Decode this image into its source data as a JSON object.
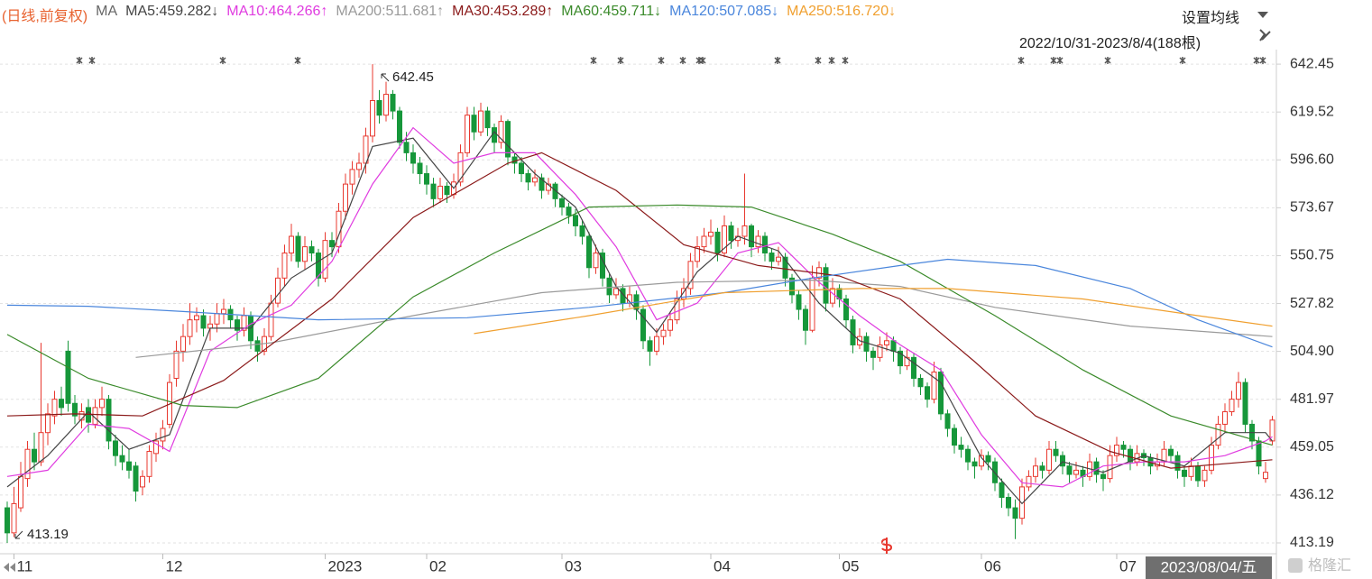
{
  "chart_data": {
    "type": "candlestick",
    "period_label": "(日线,前复权)",
    "legend_title": "MA",
    "settings_button": "设置均线",
    "range_label": "2022/10/31-2023/8/4(188根)",
    "cursor_date": "2023/08/04/五",
    "watermark": "格隆汇",
    "ylim": [
      408,
      649.4
    ],
    "yticks": [
      642.45,
      619.52,
      {
        "value": 596.6,
        "label": "596.60"
      },
      573.67,
      550.75,
      527.82,
      {
        "value": 504.9,
        "label": "504.90"
      },
      481.97,
      459.05,
      436.12,
      413.19
    ],
    "grid": true,
    "xticks": [
      {
        "value": 1,
        "label": "11"
      },
      {
        "value": 23,
        "label": "12"
      },
      {
        "value": 47,
        "label": "2023"
      },
      {
        "value": 62,
        "label": "02"
      },
      {
        "value": 82,
        "label": "03"
      },
      {
        "value": 104,
        "label": "04"
      },
      {
        "value": 123,
        "label": "05"
      },
      {
        "value": 144,
        "label": "06"
      },
      {
        "value": 164,
        "label": "07"
      }
    ],
    "up_color": "#e8382f",
    "down_color": "#16973a",
    "candles": [
      [
        430,
        433,
        413.19,
        418
      ],
      [
        418,
        440,
        416,
        432
      ],
      [
        430,
        452,
        428,
        445
      ],
      [
        444,
        462,
        440,
        458
      ],
      [
        458,
        466,
        448,
        452
      ],
      [
        452,
        509,
        450,
        466
      ],
      [
        466,
        480,
        460,
        475
      ],
      [
        474,
        486,
        470,
        482
      ],
      [
        482,
        488,
        474,
        478
      ],
      [
        505,
        510,
        476,
        480
      ],
      [
        480,
        484,
        470,
        474
      ],
      [
        472,
        480,
        468,
        476
      ],
      [
        478,
        482,
        466,
        471
      ],
      [
        470,
        482,
        468,
        478
      ],
      [
        478,
        488,
        474,
        482
      ],
      [
        482,
        484,
        458,
        462
      ],
      [
        462,
        465,
        450,
        455
      ],
      [
        455,
        460,
        448,
        452
      ],
      [
        452,
        458,
        444,
        448
      ],
      [
        450,
        452,
        433,
        438
      ],
      [
        440,
        448,
        436,
        445
      ],
      [
        445,
        460,
        442,
        457
      ],
      [
        456,
        466,
        452,
        462
      ],
      [
        462,
        472,
        458,
        468
      ],
      [
        470,
        494,
        468,
        490
      ],
      [
        492,
        510,
        488,
        505
      ],
      [
        505,
        518,
        500,
        512
      ],
      [
        512,
        528,
        508,
        520
      ],
      [
        520,
        526,
        514,
        522
      ],
      [
        522,
        525,
        512,
        516
      ],
      [
        516,
        522,
        510,
        518
      ],
      [
        518,
        528,
        514,
        523
      ],
      [
        523,
        530,
        518,
        525
      ],
      [
        525,
        527,
        516,
        520
      ],
      [
        520,
        522,
        510,
        515
      ],
      [
        515,
        526,
        512,
        522
      ],
      [
        522,
        524,
        506,
        510
      ],
      [
        510,
        512,
        500,
        505
      ],
      [
        505,
        516,
        503,
        512
      ],
      [
        512,
        532,
        510,
        528
      ],
      [
        528,
        545,
        526,
        540
      ],
      [
        540,
        556,
        536,
        552
      ],
      [
        552,
        566,
        548,
        560
      ],
      [
        560,
        562,
        545,
        548
      ],
      [
        548,
        560,
        544,
        555
      ],
      [
        555,
        558,
        548,
        552
      ],
      [
        552,
        554,
        536,
        540
      ],
      [
        540,
        562,
        538,
        558
      ],
      [
        558,
        562,
        550,
        555
      ],
      [
        555,
        576,
        552,
        572
      ],
      [
        572,
        590,
        568,
        585
      ],
      [
        585,
        596,
        580,
        592
      ],
      [
        592,
        600,
        588,
        595
      ],
      [
        595,
        612,
        590,
        608
      ],
      [
        608,
        642.45,
        605,
        625
      ],
      [
        625,
        630,
        614,
        618
      ],
      [
        618,
        634,
        615,
        628
      ],
      [
        628,
        630,
        616,
        620
      ],
      [
        620,
        622,
        602,
        605
      ],
      [
        605,
        610,
        596,
        600
      ],
      [
        600,
        604,
        590,
        595
      ],
      [
        595,
        598,
        585,
        590
      ],
      [
        590,
        594,
        580,
        585
      ],
      [
        585,
        588,
        574,
        578
      ],
      [
        578,
        588,
        576,
        584
      ],
      [
        584,
        586,
        576,
        580
      ],
      [
        580,
        590,
        578,
        586
      ],
      [
        586,
        604,
        584,
        600
      ],
      [
        600,
        622,
        598,
        618
      ],
      [
        618,
        622,
        606,
        610
      ],
      [
        610,
        624,
        608,
        620
      ],
      [
        620,
        622,
        608,
        612
      ],
      [
        612,
        614,
        600,
        605
      ],
      [
        605,
        618,
        602,
        615
      ],
      [
        615,
        616,
        594,
        598
      ],
      [
        598,
        600,
        590,
        595
      ],
      [
        595,
        598,
        586,
        590
      ],
      [
        590,
        592,
        582,
        586
      ],
      [
        586,
        592,
        584,
        588
      ],
      [
        588,
        590,
        578,
        582
      ],
      [
        582,
        588,
        580,
        585
      ],
      [
        585,
        586,
        574,
        578
      ],
      [
        578,
        580,
        570,
        574
      ],
      [
        574,
        576,
        566,
        570
      ],
      [
        570,
        573,
        560,
        565
      ],
      [
        565,
        568,
        556,
        560
      ],
      [
        560,
        562,
        540,
        545
      ],
      [
        545,
        556,
        542,
        552
      ],
      [
        552,
        554,
        536,
        540
      ],
      [
        540,
        542,
        528,
        532
      ],
      [
        532,
        540,
        530,
        535
      ],
      [
        535,
        537,
        524,
        528
      ],
      [
        528,
        536,
        526,
        532
      ],
      [
        532,
        534,
        520,
        525
      ],
      [
        525,
        527,
        506,
        510
      ],
      [
        510,
        512,
        498,
        505
      ],
      [
        505,
        516,
        503,
        512
      ],
      [
        512,
        518,
        508,
        515
      ],
      [
        515,
        524,
        512,
        520
      ],
      [
        520,
        534,
        518,
        530
      ],
      [
        530,
        540,
        526,
        535
      ],
      [
        535,
        552,
        532,
        548
      ],
      [
        548,
        560,
        545,
        555
      ],
      [
        555,
        564,
        552,
        560
      ],
      [
        560,
        568,
        556,
        562
      ],
      [
        562,
        564,
        548,
        552
      ],
      [
        552,
        570,
        550,
        565
      ],
      [
        565,
        567,
        554,
        558
      ],
      [
        558,
        564,
        555,
        560
      ],
      [
        560,
        590,
        556,
        565
      ],
      [
        565,
        566,
        550,
        555
      ],
      [
        555,
        563,
        552,
        560
      ],
      [
        560,
        562,
        548,
        552
      ],
      [
        552,
        554,
        544,
        548
      ],
      [
        548,
        555,
        546,
        550
      ],
      [
        550,
        552,
        536,
        540
      ],
      [
        540,
        542,
        528,
        532
      ],
      [
        532,
        534,
        520,
        525
      ],
      [
        525,
        527,
        508,
        515
      ],
      [
        515,
        546,
        514,
        540
      ],
      [
        540,
        548,
        536,
        545
      ],
      [
        545,
        547,
        524,
        528
      ],
      [
        528,
        540,
        526,
        535
      ],
      [
        535,
        537,
        526,
        530
      ],
      [
        530,
        532,
        516,
        520
      ],
      [
        520,
        522,
        504,
        508
      ],
      [
        508,
        516,
        506,
        512
      ],
      [
        512,
        514,
        500,
        505
      ],
      [
        505,
        507,
        496,
        502
      ],
      [
        502,
        512,
        500,
        508
      ],
      [
        508,
        514,
        505,
        510
      ],
      [
        510,
        512,
        500,
        505
      ],
      [
        505,
        507,
        494,
        498
      ],
      [
        498,
        506,
        496,
        502
      ],
      [
        502,
        504,
        488,
        492
      ],
      [
        492,
        494,
        484,
        488
      ],
      [
        488,
        490,
        478,
        482
      ],
      [
        482,
        500,
        480,
        495
      ],
      [
        495,
        497,
        472,
        475
      ],
      [
        475,
        477,
        464,
        468
      ],
      [
        468,
        470,
        456,
        460
      ],
      [
        460,
        464,
        454,
        458
      ],
      [
        458,
        460,
        448,
        452
      ],
      [
        452,
        454,
        444,
        450
      ],
      [
        450,
        458,
        448,
        455
      ],
      [
        455,
        457,
        448,
        452
      ],
      [
        452,
        454,
        438,
        442
      ],
      [
        442,
        444,
        430,
        435
      ],
      [
        435,
        437,
        426,
        430
      ],
      [
        430,
        434,
        415,
        425
      ],
      [
        425,
        444,
        422,
        440
      ],
      [
        440,
        448,
        438,
        445
      ],
      [
        445,
        454,
        442,
        450
      ],
      [
        450,
        452,
        444,
        448
      ],
      [
        448,
        462,
        446,
        458
      ],
      [
        458,
        462,
        452,
        455
      ],
      [
        455,
        457,
        446,
        450
      ],
      [
        450,
        452,
        442,
        446
      ],
      [
        446,
        452,
        444,
        448
      ],
      [
        448,
        450,
        440,
        445
      ],
      [
        445,
        456,
        443,
        452
      ],
      [
        452,
        454,
        442,
        446
      ],
      [
        446,
        448,
        438,
        444
      ],
      [
        444,
        460,
        442,
        455
      ],
      [
        455,
        464,
        452,
        460
      ],
      [
        460,
        462,
        454,
        458
      ],
      [
        458,
        460,
        448,
        452
      ],
      [
        452,
        460,
        450,
        456
      ],
      [
        456,
        458,
        450,
        454
      ],
      [
        454,
        456,
        446,
        450
      ],
      [
        450,
        456,
        448,
        452
      ],
      [
        452,
        462,
        450,
        458
      ],
      [
        458,
        460,
        452,
        455
      ],
      [
        455,
        457,
        444,
        448
      ],
      [
        448,
        450,
        440,
        445
      ],
      [
        445,
        454,
        443,
        450
      ],
      [
        450,
        452,
        440,
        443
      ],
      [
        443,
        450,
        440,
        448
      ],
      [
        448,
        464,
        446,
        460
      ],
      [
        460,
        474,
        458,
        470
      ],
      [
        470,
        480,
        466,
        476
      ],
      [
        476,
        486,
        474,
        482
      ],
      [
        482,
        495,
        478,
        490
      ],
      [
        490,
        492,
        466,
        470
      ],
      [
        470,
        472,
        458,
        462
      ],
      [
        462,
        464,
        446,
        450
      ],
      [
        444,
        452,
        442,
        447
      ],
      [
        462,
        474,
        460,
        472
      ]
    ],
    "series": [
      {
        "label": "MA5:459.282↓",
        "color": "#444444",
        "x": [
          0,
          6,
          12,
          18,
          24,
          30,
          36,
          42,
          48,
          54,
          60,
          66,
          72,
          78,
          84,
          90,
          96,
          102,
          108,
          114,
          120,
          126,
          132,
          138,
          144,
          150,
          156,
          162,
          168,
          174,
          180,
          186,
          187
        ],
        "values": [
          440,
          455,
          476,
          458,
          465,
          516,
          516,
          540,
          552,
          603,
          607,
          583,
          610,
          590,
          574,
          536,
          514,
          543,
          560,
          553,
          528,
          510,
          504,
          490,
          454,
          432,
          452,
          447,
          455,
          450,
          466,
          466,
          462
        ]
      },
      {
        "label": "MA10:464.266↑",
        "color": "#e03ce0",
        "x": [
          0,
          6,
          12,
          18,
          24,
          30,
          36,
          42,
          48,
          54,
          60,
          66,
          72,
          78,
          84,
          90,
          96,
          102,
          108,
          114,
          120,
          126,
          132,
          138,
          144,
          150,
          156,
          162,
          168,
          174,
          180,
          186,
          187
        ],
        "values": [
          445,
          448,
          470,
          468,
          457,
          505,
          518,
          527,
          548,
          585,
          612,
          595,
          600,
          600,
          580,
          555,
          520,
          528,
          552,
          557,
          538,
          522,
          508,
          496,
          465,
          442,
          440,
          450,
          452,
          452,
          455,
          462,
          464
        ]
      },
      {
        "label": "MA200:511.681↑",
        "color": "#9a9a9a",
        "x": [
          19,
          39,
          60,
          79,
          99,
          119,
          132,
          146,
          166,
          187
        ],
        "values": [
          502,
          509,
          522,
          533,
          538,
          539,
          536,
          526,
          517,
          512
        ]
      },
      {
        "label": "MA30:453.289↑",
        "color": "#8b1a1a",
        "x": [
          0,
          10,
          20,
          32,
          48,
          60,
          74,
          79,
          90,
          100,
          111,
          123,
          132,
          143,
          152,
          163,
          172,
          187
        ],
        "values": [
          474,
          475,
          474,
          491,
          530,
          569,
          595,
          600,
          582,
          556,
          546,
          541,
          530,
          500,
          474,
          457,
          449,
          453
        ]
      },
      {
        "label": "MA60:459.711↓",
        "color": "#3a8a2a",
        "x": [
          0,
          12,
          26,
          34,
          46,
          60,
          72,
          86,
          99,
          110,
          122,
          132,
          146,
          159,
          172,
          187
        ],
        "values": [
          513,
          492,
          479,
          478,
          492,
          531,
          552,
          574,
          575,
          574,
          561,
          548,
          522,
          496,
          474,
          460
        ]
      },
      {
        "label": "MA120:507.085↓",
        "color": "#4a86dc",
        "x": [
          0,
          12,
          26,
          46,
          68,
          86,
          106,
          119,
          132,
          139,
          152,
          166,
          176,
          187
        ],
        "values": [
          527,
          526.5,
          524,
          520,
          521,
          526,
          533,
          540,
          546,
          549,
          546,
          535,
          520,
          507
        ]
      },
      {
        "label": "MA250:516.720↓",
        "color": "#f0a030",
        "x": [
          69,
          86,
          106,
          126,
          139,
          159,
          176,
          187
        ],
        "values": [
          513.4,
          522,
          533,
          535,
          535,
          530,
          522,
          517
        ]
      }
    ]
  }
}
